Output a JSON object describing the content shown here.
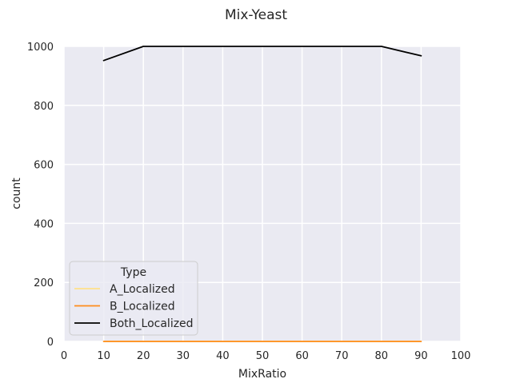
{
  "chart_data": {
    "type": "line",
    "title": "Mix-Yeast",
    "xlabel": "MixRatio",
    "ylabel": "count",
    "xlim": [
      0,
      100
    ],
    "ylim": [
      0,
      1000
    ],
    "xticks": [
      0,
      10,
      20,
      30,
      40,
      50,
      60,
      70,
      80,
      90,
      100
    ],
    "yticks": [
      0,
      200,
      400,
      600,
      800,
      1000
    ],
    "grid": true,
    "legend": {
      "title": "Type",
      "location": "lower-left"
    },
    "series": [
      {
        "name": "A_Localized",
        "color": "#ffe08a",
        "x": [
          10,
          20,
          30,
          40,
          50,
          60,
          70,
          80,
          90
        ],
        "y": [
          0,
          0,
          0,
          0,
          0,
          0,
          0,
          0,
          0
        ]
      },
      {
        "name": "B_Localized",
        "color": "#ff8c1a",
        "x": [
          10,
          20,
          30,
          40,
          50,
          60,
          70,
          80,
          90
        ],
        "y": [
          0,
          0,
          0,
          0,
          0,
          0,
          0,
          0,
          0
        ]
      },
      {
        "name": "Both_Localized",
        "color": "#000000",
        "x": [
          10,
          20,
          30,
          40,
          50,
          60,
          70,
          80,
          90
        ],
        "y": [
          952,
          1000,
          1000,
          1000,
          1000,
          1000,
          1000,
          1000,
          968
        ]
      }
    ]
  }
}
